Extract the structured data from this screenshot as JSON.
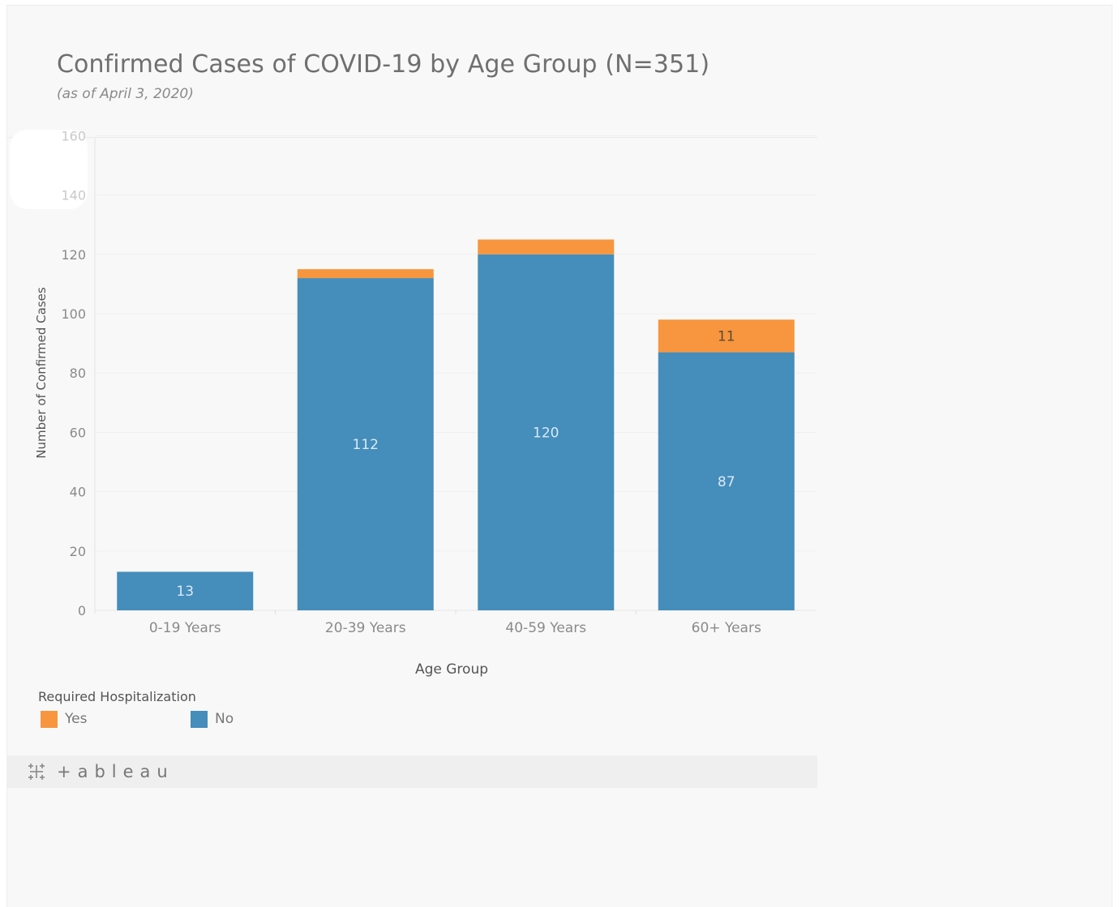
{
  "chart_data": {
    "type": "bar",
    "stacked": true,
    "title": "Confirmed Cases of COVID-19 by Age Group (N=351)",
    "subtitle": "(as of April 3, 2020)",
    "xlabel": "Age Group",
    "ylabel": "Number of Confirmed Cases",
    "categories": [
      "0-19 Years",
      "20-39 Years",
      "40-59 Years",
      "60+ Years"
    ],
    "series": [
      {
        "name": "No",
        "color": "#458dbb",
        "values": [
          13,
          112,
          120,
          87
        ],
        "labels": [
          "13",
          "112",
          "120",
          "87"
        ]
      },
      {
        "name": "Yes",
        "color": "#f7963e",
        "values": [
          0,
          3,
          5,
          11
        ],
        "labels": [
          "",
          "",
          "",
          "11"
        ]
      }
    ],
    "ylim": [
      0,
      160
    ],
    "yticks": [
      0,
      20,
      40,
      60,
      80,
      100,
      120,
      140,
      160
    ],
    "grid": true,
    "legend": {
      "title": "Required Hospitalization",
      "placement": "bottom-left",
      "items": [
        {
          "label": "Yes",
          "color": "#f7963e"
        },
        {
          "label": "No",
          "color": "#458dbb"
        }
      ]
    }
  },
  "footer": {
    "brand_icon": "tableau-logo-icon",
    "brand": "+ableau"
  }
}
